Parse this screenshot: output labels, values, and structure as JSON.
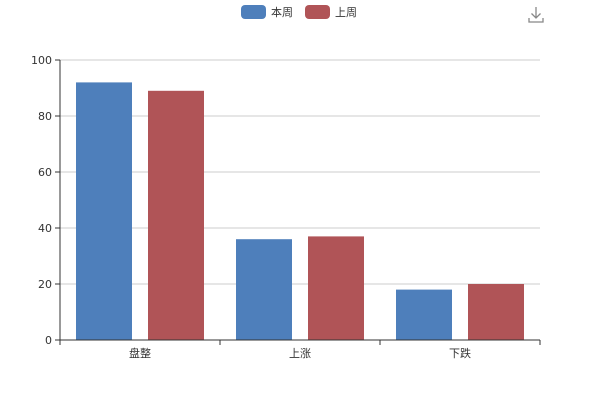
{
  "chart_data": {
    "type": "bar",
    "categories": [
      "盘整",
      "上涨",
      "下跌"
    ],
    "series": [
      {
        "name": "本周",
        "values": [
          92,
          36,
          18
        ],
        "color": "#4e7fbb"
      },
      {
        "name": "上周",
        "values": [
          89,
          37,
          20
        ],
        "color": "#b05457"
      }
    ],
    "ylim": [
      0,
      100
    ],
    "yticks": [
      0,
      20,
      40,
      60,
      80,
      100
    ],
    "grid": true,
    "legend_position": "top-center"
  },
  "toolbar": {
    "download_icon": "download-icon"
  }
}
